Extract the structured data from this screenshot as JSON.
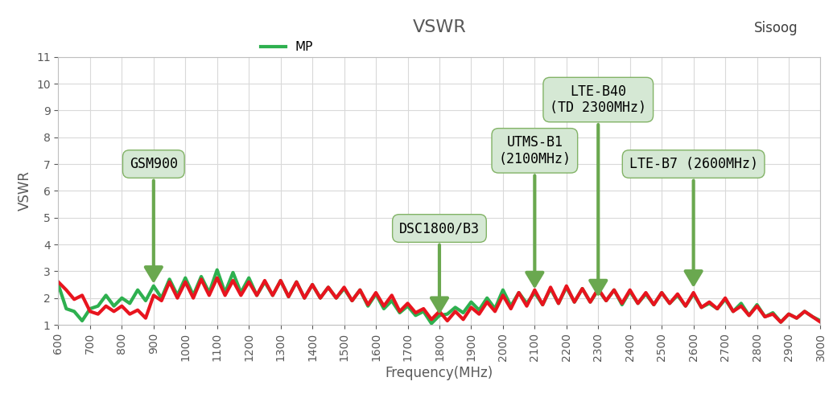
{
  "chart_data": {
    "type": "line",
    "title": "VSWR",
    "x_label": "Frequency(MHz)",
    "y_label": "VSWR",
    "watermark": "Sisoog",
    "x": [
      600,
      625,
      650,
      675,
      700,
      725,
      750,
      775,
      800,
      825,
      850,
      875,
      900,
      925,
      950,
      975,
      1000,
      1025,
      1050,
      1075,
      1100,
      1125,
      1150,
      1175,
      1200,
      1225,
      1250,
      1275,
      1300,
      1325,
      1350,
      1375,
      1400,
      1425,
      1450,
      1475,
      1500,
      1525,
      1550,
      1575,
      1600,
      1625,
      1650,
      1675,
      1700,
      1725,
      1750,
      1775,
      1800,
      1825,
      1850,
      1875,
      1900,
      1925,
      1950,
      1975,
      2000,
      2025,
      2050,
      2075,
      2100,
      2125,
      2150,
      2175,
      2200,
      2225,
      2250,
      2275,
      2300,
      2325,
      2350,
      2375,
      2400,
      2425,
      2450,
      2475,
      2500,
      2525,
      2550,
      2575,
      2600,
      2625,
      2650,
      2675,
      2700,
      2725,
      2750,
      2775,
      2800,
      2825,
      2850,
      2875,
      2900,
      2925,
      2950,
      2975,
      3000
    ],
    "series": [
      {
        "name": "MP",
        "color": "#2eb04f",
        "values": [
          2.5,
          1.6,
          1.5,
          1.15,
          1.6,
          1.7,
          2.1,
          1.7,
          2.0,
          1.8,
          2.3,
          1.9,
          2.45,
          2.0,
          2.7,
          2.1,
          2.75,
          2.1,
          2.8,
          2.2,
          3.05,
          2.2,
          2.95,
          2.2,
          2.75,
          2.1,
          2.6,
          2.1,
          2.65,
          2.05,
          2.6,
          2.0,
          2.5,
          2.0,
          2.4,
          2.0,
          2.35,
          1.9,
          2.3,
          1.7,
          2.15,
          1.6,
          1.9,
          1.45,
          1.7,
          1.35,
          1.5,
          1.05,
          1.35,
          1.4,
          1.65,
          1.45,
          1.85,
          1.55,
          2.0,
          1.6,
          2.3,
          1.7,
          2.2,
          1.8,
          2.2,
          1.75,
          2.35,
          1.8,
          2.4,
          1.85,
          2.35,
          1.85,
          2.3,
          1.9,
          2.3,
          1.75,
          2.25,
          1.8,
          2.15,
          1.75,
          2.2,
          1.8,
          2.1,
          1.7,
          2.15,
          1.65,
          1.8,
          1.6,
          1.95,
          1.5,
          1.8,
          1.35,
          1.75,
          1.3,
          1.45,
          1.1,
          1.4,
          1.25,
          1.5,
          1.3,
          1.15
        ]
      },
      {
        "color": "#e8141e",
        "values": [
          2.6,
          2.3,
          1.95,
          2.1,
          1.5,
          1.4,
          1.7,
          1.5,
          1.7,
          1.4,
          1.55,
          1.25,
          2.1,
          1.9,
          2.6,
          2.0,
          2.6,
          2.0,
          2.7,
          2.1,
          2.75,
          2.1,
          2.65,
          2.1,
          2.6,
          2.1,
          2.65,
          2.1,
          2.65,
          2.05,
          2.6,
          2.0,
          2.5,
          2.0,
          2.4,
          2.0,
          2.4,
          1.9,
          2.3,
          1.75,
          2.2,
          1.7,
          2.1,
          1.5,
          1.8,
          1.45,
          1.6,
          1.2,
          1.5,
          1.15,
          1.5,
          1.2,
          1.65,
          1.4,
          1.85,
          1.5,
          2.1,
          1.6,
          2.2,
          1.7,
          2.3,
          1.75,
          2.4,
          1.8,
          2.45,
          1.85,
          2.35,
          1.85,
          2.35,
          1.9,
          2.3,
          1.8,
          2.3,
          1.8,
          2.2,
          1.75,
          2.2,
          1.8,
          2.15,
          1.7,
          2.2,
          1.65,
          1.85,
          1.6,
          2.0,
          1.5,
          1.7,
          1.35,
          1.7,
          1.3,
          1.4,
          1.1,
          1.4,
          1.25,
          1.5,
          1.3,
          1.1
        ]
      }
    ],
    "annotations": [
      {
        "text": "GSM900",
        "x": 900,
        "y": 2.45
      },
      {
        "text": "DSC1800/B3",
        "x": 1800,
        "y": 1.3
      },
      {
        "text": "UTMS-B1\n(2100MHz)",
        "x": 2100,
        "y": 2.25
      },
      {
        "text": "LTE-B40\n(TD 2300MHz)",
        "x": 2300,
        "y": 1.95
      },
      {
        "text": "LTE-B7 (2600MHz)",
        "x": 2600,
        "y": 2.3
      }
    ],
    "xlim": [
      600,
      3000
    ],
    "xticks": [
      600,
      700,
      800,
      900,
      1000,
      1100,
      1200,
      1300,
      1400,
      1500,
      1600,
      1700,
      1800,
      1900,
      2000,
      2100,
      2200,
      2300,
      2400,
      2500,
      2600,
      2700,
      2800,
      2900,
      3000
    ],
    "ylim": [
      1,
      11
    ],
    "yticks": [
      1,
      2,
      3,
      4,
      5,
      6,
      7,
      8,
      9,
      10,
      11
    ],
    "grid": true,
    "legend": "upper center"
  }
}
